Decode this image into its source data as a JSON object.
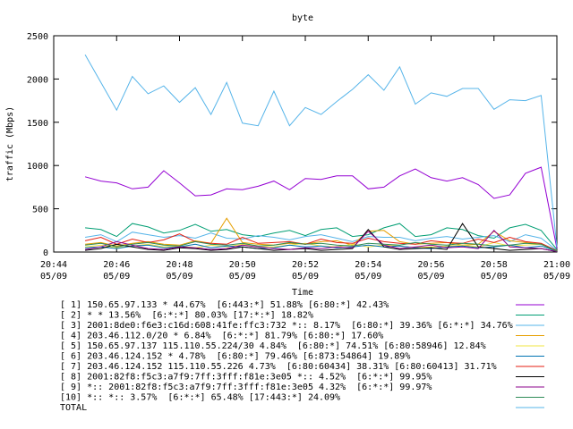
{
  "chart_data": {
    "type": "line",
    "title": "byte",
    "xlabel": "Time",
    "ylabel": "traffic (Mbps)",
    "ylim": [
      0,
      2500
    ],
    "xlim": [
      0,
      16
    ],
    "yticks": [
      "0",
      "500",
      "1000",
      "1500",
      "2000",
      "2500"
    ],
    "xticks": [
      {
        "time": "20:44",
        "date": "05/09"
      },
      {
        "time": "20:46",
        "date": "05/09"
      },
      {
        "time": "20:48",
        "date": "05/09"
      },
      {
        "time": "20:50",
        "date": "05/09"
      },
      {
        "time": "20:52",
        "date": "05/09"
      },
      {
        "time": "20:54",
        "date": "05/09"
      },
      {
        "time": "20:56",
        "date": "05/09"
      },
      {
        "time": "20:58",
        "date": "05/09"
      },
      {
        "time": "21:00",
        "date": "05/09"
      }
    ],
    "grid": false,
    "legend_position": "bottom",
    "x_minutes": [
      1,
      1.5,
      2,
      2.5,
      3,
      3.5,
      4,
      4.5,
      5,
      5.5,
      6,
      6.5,
      7,
      7.5,
      8,
      8.5,
      9,
      9.5,
      10,
      10.5,
      11,
      11.5,
      12,
      12.5,
      13,
      13.5,
      14,
      14.5,
      15,
      15.5,
      16
    ],
    "series": [
      {
        "name": "[ 1] 150.65.97.133 * 44.67%  [6:443:*] 51.88% [6:80:*] 42.43%",
        "color": "#9400d3",
        "values": [
          870,
          820,
          800,
          730,
          750,
          940,
          800,
          650,
          660,
          730,
          720,
          760,
          820,
          720,
          850,
          840,
          880,
          880,
          730,
          750,
          880,
          960,
          860,
          820,
          860,
          780,
          620,
          660,
          910,
          980,
          40
        ]
      },
      {
        "name": "[ 2] * * 13.56%  [6:*:*] 80.03% [17:*:*] 18.82%",
        "color": "#009e73",
        "values": [
          280,
          260,
          180,
          330,
          290,
          220,
          250,
          320,
          240,
          260,
          200,
          180,
          220,
          250,
          190,
          260,
          280,
          180,
          200,
          280,
          330,
          180,
          200,
          280,
          260,
          190,
          160,
          280,
          320,
          250,
          30
        ]
      },
      {
        "name": "[ 3] 2001:8de0:f6e3:c16d:608:41fe:ffc3:732 *:: 8.17%  [6:80:*] 39.36% [6:*:*] 34.76%",
        "color": "#56b4e9",
        "values": [
          170,
          200,
          120,
          230,
          200,
          170,
          190,
          160,
          220,
          160,
          150,
          190,
          170,
          140,
          180,
          200,
          160,
          120,
          180,
          170,
          170,
          130,
          160,
          180,
          150,
          170,
          190,
          120,
          200,
          160,
          20
        ]
      },
      {
        "name": "[ 4] 203.46.112.0/20 * 6.84%  [6:*:*] 81.79% [6:80:*] 17.60%",
        "color": "#e69f00",
        "values": [
          90,
          110,
          70,
          100,
          120,
          90,
          80,
          130,
          100,
          390,
          110,
          90,
          80,
          100,
          90,
          120,
          130,
          80,
          240,
          250,
          120,
          90,
          100,
          110,
          80,
          90,
          240,
          130,
          110,
          90,
          15
        ]
      },
      {
        "name": "[ 5] 150.65.97.137 115.110.55.224/30 4.84%  [6:80:*] 74.51% [6:80:58946] 12.84%",
        "color": "#f0e442",
        "values": [
          60,
          80,
          50,
          70,
          90,
          60,
          70,
          50,
          80,
          60,
          90,
          70,
          60,
          80,
          100,
          70,
          60,
          90,
          60,
          80,
          70,
          50,
          60,
          70,
          80,
          60,
          110,
          70,
          80,
          90,
          10
        ]
      },
      {
        "name": "[ 6] 203.46.124.152 * 4.78%  [6:80:*] 79.46% [6:873:54864] 19.89%",
        "color": "#0072b2",
        "values": [
          50,
          60,
          40,
          70,
          80,
          50,
          60,
          90,
          50,
          70,
          60,
          40,
          50,
          80,
          60,
          70,
          50,
          60,
          80,
          60,
          70,
          50,
          40,
          60,
          70,
          50,
          60,
          80,
          50,
          70,
          10
        ]
      },
      {
        "name": "[ 7] 203.46.124.152 115.110.55.226 4.73%  [6:80:60434] 38.31% [6:80:60413] 31.71%",
        "color": "#e51e10",
        "values": [
          130,
          170,
          90,
          150,
          110,
          140,
          210,
          120,
          100,
          90,
          170,
          100,
          110,
          120,
          90,
          150,
          110,
          100,
          160,
          120,
          100,
          90,
          130,
          110,
          100,
          150,
          110,
          170,
          120,
          100,
          15
        ]
      },
      {
        "name": "[ 8] 2001:82f8:f5c3:a7f9:7ff:3fff:f81e:3e05 *:: 4.52%  [6:*:*] 99.95%",
        "color": "#000000",
        "values": [
          20,
          40,
          90,
          60,
          30,
          20,
          50,
          40,
          20,
          30,
          60,
          40,
          20,
          30,
          40,
          20,
          30,
          40,
          260,
          60,
          30,
          40,
          50,
          30,
          330,
          60,
          40,
          20,
          30,
          40,
          5
        ]
      },
      {
        "name": "[ 9] *:: 2001:82f8:f5c3:a7f9:7ff:3fff:f81e:3e05 4.32%  [6:*:*] 99.97%",
        "color": "#8b008b",
        "values": [
          30,
          60,
          120,
          80,
          40,
          30,
          60,
          50,
          30,
          40,
          80,
          60,
          40,
          30,
          50,
          40,
          60,
          50,
          240,
          80,
          40,
          60,
          80,
          50,
          60,
          40,
          250,
          60,
          50,
          40,
          5
        ]
      },
      {
        "name": "[10] *:: *:: 3.57%  [6:*:*] 65.48% [17:443:*] 24.09%",
        "color": "#2e8b57",
        "values": [
          80,
          100,
          60,
          90,
          110,
          80,
          70,
          120,
          90,
          80,
          100,
          70,
          80,
          110,
          90,
          100,
          80,
          70,
          100,
          90,
          80,
          110,
          90,
          80,
          100,
          90,
          70,
          80,
          100,
          90,
          10
        ]
      },
      {
        "name": "TOTAL",
        "color": "#56b4e9",
        "values": [
          2280,
          1960,
          1640,
          2030,
          1830,
          1920,
          1730,
          1900,
          1590,
          1960,
          1490,
          1460,
          1860,
          1460,
          1670,
          1590,
          1740,
          1880,
          2050,
          1870,
          2140,
          1710,
          1840,
          1800,
          1890,
          1890,
          1650,
          1760,
          1750,
          1810,
          60
        ]
      }
    ]
  }
}
